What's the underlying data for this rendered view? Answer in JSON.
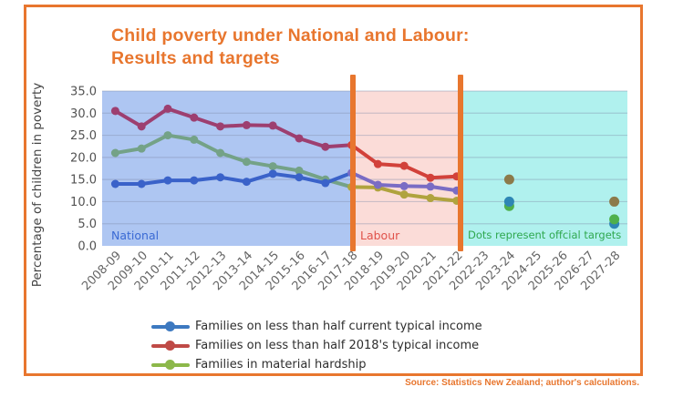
{
  "accent_color": "#e8762e",
  "title": {
    "line1": "Child poverty under National and Labour:",
    "line2": "Results and targets"
  },
  "source_note": "Source: Statistics New Zealand; author's calculations.",
  "chart_data": {
    "type": "line",
    "title": "Child poverty under National and Labour: Results and targets",
    "xlabel": "",
    "ylabel": "Percentage of children in poverty",
    "ylim": [
      0,
      35
    ],
    "yticks": [
      0,
      5,
      10,
      15,
      20,
      25,
      30,
      35
    ],
    "grid": true,
    "legend_position": "bottom",
    "categories": [
      "2008-09",
      "2009-10",
      "2010-11",
      "2011-12",
      "2012-13",
      "2013-14",
      "2014-15",
      "2015-16",
      "2016-17",
      "2017-18",
      "2018-19",
      "2019-20",
      "2020-21",
      "2021-22",
      "2022-23",
      "2023-24",
      "2024-25",
      "2025-26",
      "2026-27",
      "2027-28"
    ],
    "series": [
      {
        "key": "hardship",
        "name": "Families in material hardship",
        "values": [
          21.0,
          22.0,
          25.0,
          24.0,
          21.0,
          19.0,
          18.0,
          17.0,
          15.0,
          13.3,
          13.2,
          11.6,
          10.8,
          10.2
        ],
        "colors": {
          "legend": "#8cb84a",
          "national": "#74a287",
          "labour": "#b0a33e",
          "target": "#4fb04c"
        }
      },
      {
        "key": "current",
        "name": "Families on less than half current typical income",
        "values": [
          14.0,
          14.0,
          14.8,
          14.8,
          15.5,
          14.5,
          16.3,
          15.5,
          14.2,
          16.5,
          13.8,
          13.5,
          13.4,
          12.5
        ],
        "colors": {
          "legend": "#3d79c0",
          "national": "#3a62c9",
          "labour": "#7a6cc4",
          "target": "#2e86b5"
        }
      },
      {
        "key": "fixed2018",
        "name": "Families on less than half 2018's typical income",
        "values": [
          30.5,
          27.0,
          31.0,
          29.0,
          27.0,
          27.3,
          27.2,
          24.3,
          22.4,
          22.8,
          18.5,
          18.1,
          15.4,
          15.7
        ],
        "colors": {
          "legend": "#bf4a46",
          "national": "#9d3f70",
          "labour": "#d2413a",
          "target": "#8c7a4a"
        }
      }
    ],
    "legend_order": [
      "current",
      "fixed2018",
      "hardship"
    ],
    "national_last_index": 9,
    "line_last_index": 13,
    "regions": [
      {
        "label": "National",
        "from": "2008-09",
        "to": "2017-18",
        "bg": "#aec6f2",
        "label_color": "#3a6ad4"
      },
      {
        "label": "Labour",
        "from": "2017-18",
        "to": "2021-22",
        "bg": "#fbdcd8",
        "label_color": "#e0524a"
      },
      {
        "label": "Dots represent offcial targets",
        "from": "2022-23",
        "to": "2027-28",
        "bg": "#b0f1ee",
        "label_color": "#2fa84f"
      }
    ],
    "targets": [
      {
        "series": "fixed2018",
        "category": "2023-24",
        "value": 15
      },
      {
        "series": "hardship",
        "category": "2023-24",
        "value": 9
      },
      {
        "series": "current",
        "category": "2023-24",
        "value": 10
      },
      {
        "series": "fixed2018",
        "category": "2027-28",
        "value": 10
      },
      {
        "series": "current",
        "category": "2027-28",
        "value": 5
      },
      {
        "series": "hardship",
        "category": "2027-28",
        "value": 6
      }
    ]
  }
}
